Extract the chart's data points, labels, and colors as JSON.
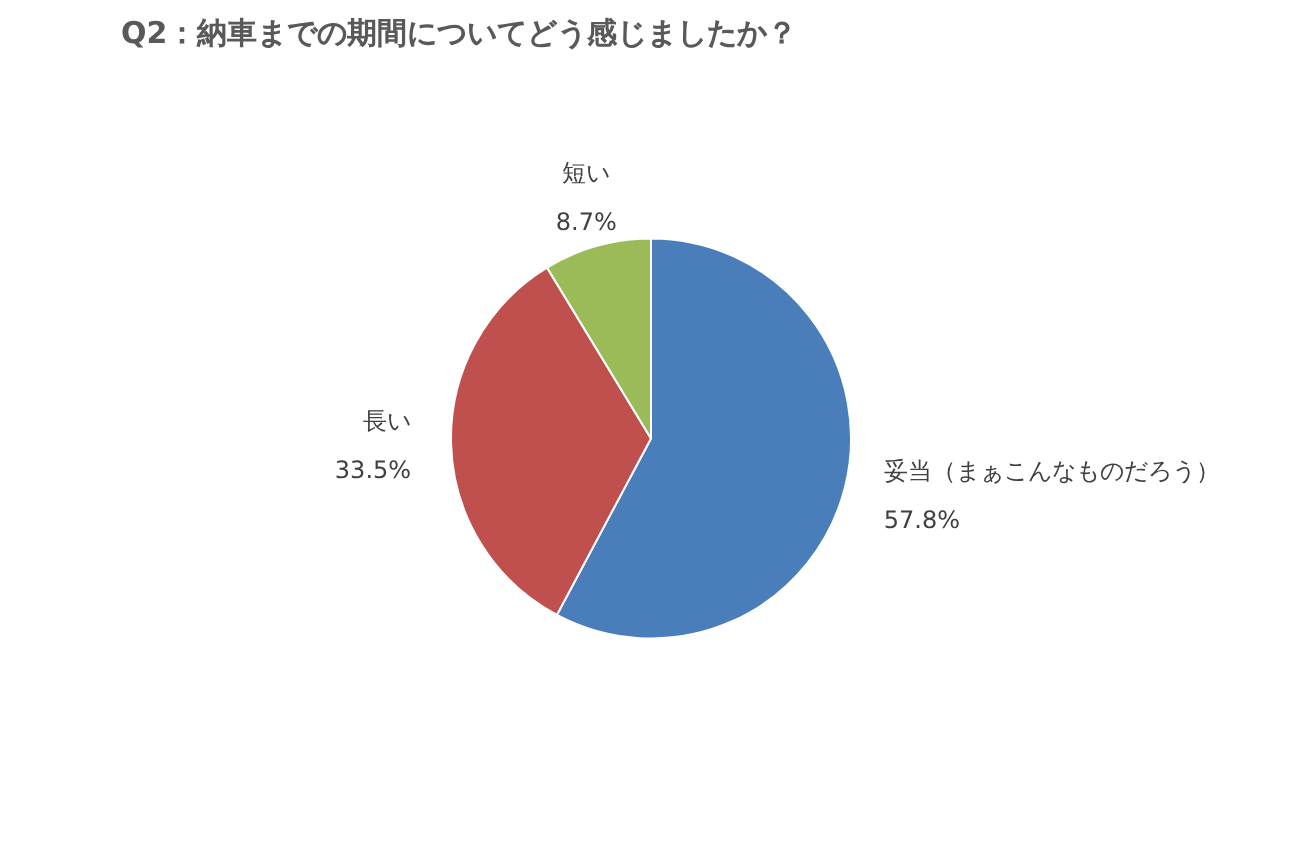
{
  "chart_data": {
    "type": "pie",
    "title": "Q2：納車までの期間についてどう感じましたか？",
    "categories": [
      "妥当（まぁこんなものだろう）",
      "長い",
      "短い"
    ],
    "values": [
      57.8,
      33.5,
      8.7
    ],
    "colors": [
      "#4a7ebb",
      "#c0504d",
      "#9bbb59"
    ],
    "value_labels": [
      "57.8%",
      "33.5%",
      "8.7%"
    ],
    "legend": false
  }
}
